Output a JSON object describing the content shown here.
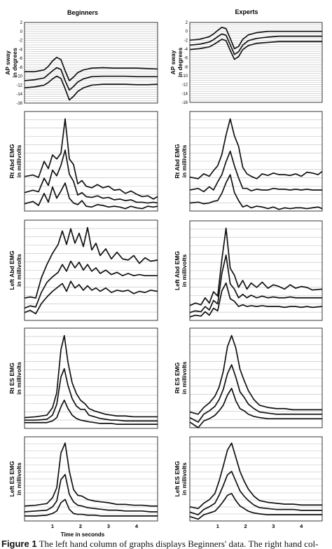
{
  "figure": {
    "columns": [
      "Beginners",
      "Experts"
    ],
    "x_axis_label": "Time in seconds",
    "x_ticks": [
      "1",
      "2",
      "3",
      "4"
    ]
  },
  "caption": {
    "label": "Figure 1",
    "text": "The left hand column of graphs displays Beginners' data. The right hand col-"
  },
  "chart_data": [
    {
      "type": "line",
      "title": "Beginners",
      "ylabel": "AP sway in degrees",
      "x": [
        0,
        0.35,
        0.7,
        0.85,
        1.0,
        1.15,
        1.3,
        1.45,
        1.6,
        1.75,
        1.9,
        2.1,
        2.4,
        2.8,
        3.2,
        3.6,
        4.0,
        4.4,
        4.75
      ],
      "yticks": [
        "2",
        "0",
        "-2",
        "-4",
        "-6",
        "-8",
        "-10",
        "-12",
        "-14",
        "-16"
      ],
      "ylim": [
        -16,
        2
      ],
      "series": [
        {
          "values": [
            -9,
            -9,
            -8.6,
            -7.8,
            -6.6,
            -5.8,
            -6.3,
            -8.8,
            -11,
            -10.2,
            -9.2,
            -8.6,
            -8.2,
            -8.1,
            -8.2,
            -8.2,
            -8.2,
            -8.3,
            -8.4
          ]
        },
        {
          "values": [
            -11,
            -10.8,
            -10.4,
            -9.6,
            -8.8,
            -8.1,
            -8.5,
            -11,
            -13.1,
            -12.3,
            -11.3,
            -10.6,
            -10.1,
            -10,
            -10,
            -10,
            -10.1,
            -10.1,
            -10.1
          ]
        },
        {
          "values": [
            -12.6,
            -12.4,
            -12,
            -11.4,
            -10.6,
            -10,
            -10.5,
            -12.8,
            -15.3,
            -14.5,
            -13.4,
            -12.6,
            -12,
            -11.8,
            -11.8,
            -11.8,
            -11.9,
            -11.9,
            -11.8
          ]
        }
      ]
    },
    {
      "type": "line",
      "title": "Experts",
      "ylabel": "AP sway in degrees",
      "x": [
        0,
        0.35,
        0.7,
        0.85,
        1.0,
        1.15,
        1.3,
        1.45,
        1.6,
        1.75,
        1.9,
        2.1,
        2.4,
        2.8,
        3.2,
        3.6,
        4.0,
        4.4,
        4.75
      ],
      "yticks": [
        "2",
        "0",
        "-2",
        "-4",
        "-6",
        "-8",
        "-10",
        "-12",
        "-14",
        "-16"
      ],
      "ylim": [
        -16,
        2
      ],
      "series": [
        {
          "values": [
            -2,
            -1.8,
            -1.2,
            -0.6,
            0.2,
            0.9,
            0.6,
            -1.6,
            -3.9,
            -3.4,
            -1.8,
            -0.8,
            -0.3,
            0,
            0,
            0,
            0,
            0,
            0
          ]
        },
        {
          "values": [
            -3.1,
            -2.9,
            -2.4,
            -1.9,
            -1.2,
            -0.6,
            -0.9,
            -3,
            -5.2,
            -4.6,
            -3.1,
            -2.1,
            -1.6,
            -1.3,
            -1.1,
            -1.1,
            -1.1,
            -1.1,
            -1.1
          ]
        },
        {
          "values": [
            -4.1,
            -3.9,
            -3.5,
            -3,
            -2.4,
            -1.8,
            -2.1,
            -4.3,
            -6.3,
            -5.7,
            -4.1,
            -3.2,
            -2.7,
            -2.5,
            -2.3,
            -2.3,
            -2.3,
            -2.3,
            -2.3
          ]
        }
      ]
    },
    {
      "type": "line",
      "title": "",
      "ylabel": "Rt Abd EMG in millivolts",
      "x": [
        0,
        0.3,
        0.5,
        0.7,
        0.85,
        1.0,
        1.15,
        1.3,
        1.45,
        1.6,
        1.75,
        1.9,
        2.05,
        2.2,
        2.4,
        2.6,
        2.8,
        3.0,
        3.2,
        3.4,
        3.6,
        3.8,
        4.0,
        4.2,
        4.4,
        4.6,
        4.75
      ],
      "series": [
        {
          "values": [
            4.3,
            4.5,
            4.2,
            6.2,
            5.3,
            7.0,
            6.5,
            7.2,
            11.5,
            6.5,
            5.8,
            3.4,
            3.8,
            3.1,
            2.9,
            3.3,
            2.9,
            3.1,
            2.6,
            2.7,
            2.2,
            2.5,
            2.1,
            1.8,
            1.9,
            1.5,
            1.8
          ]
        },
        {
          "values": [
            2.3,
            2.6,
            2.4,
            4.1,
            3.2,
            5.1,
            4.4,
            5.7,
            7.6,
            4.6,
            3.7,
            2.0,
            2.3,
            1.8,
            1.7,
            1.9,
            1.6,
            1.7,
            1.4,
            1.5,
            1.3,
            1.4,
            1.1,
            1.1,
            1.0,
            1.1,
            1.0
          ]
        },
        {
          "values": [
            0.9,
            1.2,
            0.7,
            2.2,
            1.1,
            3.0,
            1.6,
            2.5,
            3.5,
            1.6,
            1.0,
            0.8,
            1.3,
            0.6,
            0.5,
            0.8,
            0.7,
            0.5,
            0.6,
            0.5,
            0.3,
            0.6,
            0.4,
            0.3,
            0.6,
            0.5,
            0.6
          ]
        }
      ]
    },
    {
      "type": "line",
      "title": "",
      "ylabel": "Rt Abd EMG in millivolts",
      "x": [
        0,
        0.3,
        0.5,
        0.7,
        0.85,
        1.0,
        1.15,
        1.3,
        1.45,
        1.6,
        1.75,
        1.9,
        2.05,
        2.2,
        2.4,
        2.6,
        2.8,
        3.0,
        3.2,
        3.4,
        3.6,
        3.8,
        4.0,
        4.2,
        4.4,
        4.6,
        4.75
      ],
      "series": [
        {
          "values": [
            4.2,
            4.0,
            4.6,
            4.3,
            5.0,
            5.6,
            7.0,
            9.4,
            11.4,
            9.3,
            8.0,
            5.4,
            4.6,
            4.3,
            4.0,
            4.6,
            4.4,
            4.7,
            4.5,
            4.5,
            4.4,
            4.6,
            4.3,
            4.8,
            4.7,
            4.5,
            4.9
          ]
        },
        {
          "values": [
            2.6,
            2.8,
            2.4,
            3.0,
            2.6,
            3.6,
            4.5,
            6.1,
            7.4,
            5.6,
            4.1,
            2.8,
            2.8,
            2.5,
            2.7,
            2.6,
            2.6,
            2.8,
            2.7,
            2.7,
            2.6,
            2.7,
            2.6,
            2.7,
            2.6,
            2.6,
            2.6
          ]
        },
        {
          "values": [
            1.0,
            1.1,
            0.9,
            1.0,
            1.2,
            1.3,
            2.2,
            3.5,
            4.5,
            2.3,
            1.3,
            0.5,
            0.7,
            0.4,
            0.6,
            0.5,
            0.3,
            0.5,
            0.2,
            0.4,
            0.3,
            0.4,
            0.4,
            0.3,
            0.4,
            0.5,
            0.3
          ]
        }
      ]
    },
    {
      "type": "line",
      "title": "",
      "ylabel": "Left Abd EMG in millivolts",
      "x": [
        0,
        0.2,
        0.4,
        0.6,
        0.8,
        1.0,
        1.2,
        1.35,
        1.5,
        1.65,
        1.8,
        1.95,
        2.1,
        2.25,
        2.4,
        2.55,
        2.7,
        2.9,
        3.1,
        3.3,
        3.5,
        3.7,
        3.9,
        4.1,
        4.3,
        4.5,
        4.75
      ],
      "series": [
        {
          "values": [
            2.0,
            2.1,
            2.0,
            3.8,
            5.0,
            6.0,
            6.8,
            8.0,
            6.8,
            8.2,
            6.9,
            7.8,
            6.6,
            8.3,
            6.3,
            6.9,
            5.8,
            6.4,
            5.5,
            6.1,
            5.5,
            5.4,
            5.8,
            5.1,
            5.6,
            5.3,
            5.4
          ]
        },
        {
          "values": [
            1.1,
            1.3,
            1.2,
            2.5,
            3.4,
            3.9,
            4.3,
            5.0,
            4.4,
            5.3,
            4.7,
            5.2,
            4.5,
            5.0,
            4.4,
            4.7,
            4.2,
            4.5,
            4.1,
            4.3,
            4.0,
            4.2,
            4.0,
            4.1,
            4.0,
            4.0,
            4.0
          ]
        },
        {
          "values": [
            0.7,
            0.9,
            0.6,
            1.5,
            2.1,
            2.6,
            3.0,
            3.3,
            2.6,
            3.5,
            2.9,
            3.2,
            2.7,
            3.1,
            2.7,
            2.9,
            2.6,
            2.9,
            2.5,
            2.7,
            2.6,
            2.7,
            2.4,
            2.6,
            2.5,
            2.7,
            2.6
          ]
        }
      ]
    },
    {
      "type": "line",
      "title": "",
      "ylabel": "Left Abd EMG in millivolts",
      "x": [
        0,
        0.2,
        0.4,
        0.55,
        0.7,
        0.85,
        1.0,
        1.15,
        1.3,
        1.45,
        1.6,
        1.75,
        1.9,
        2.05,
        2.2,
        2.4,
        2.6,
        2.8,
        3.0,
        3.2,
        3.4,
        3.6,
        3.8,
        4.0,
        4.2,
        4.4,
        4.75
      ],
      "series": [
        {
          "values": [
            1.7,
            2.0,
            1.8,
            2.6,
            2.0,
            3.3,
            2.8,
            7.0,
            10.6,
            6.0,
            5.2,
            3.8,
            4.6,
            3.6,
            4.3,
            3.8,
            4.4,
            3.7,
            4.1,
            3.9,
            3.6,
            4.1,
            3.7,
            3.9,
            3.8,
            3.5,
            3.6
          ]
        },
        {
          "values": [
            0.9,
            1.1,
            1.0,
            1.6,
            1.2,
            2.3,
            1.9,
            5.4,
            7.5,
            4.2,
            3.6,
            2.6,
            3.0,
            2.6,
            2.9,
            2.6,
            2.8,
            2.6,
            2.7,
            2.6,
            2.6,
            2.7,
            2.6,
            2.6,
            2.6,
            2.6,
            2.6
          ]
        },
        {
          "values": [
            0.4,
            0.6,
            0.5,
            1.0,
            0.6,
            1.4,
            1.1,
            3.4,
            4.3,
            2.5,
            2.2,
            1.6,
            1.8,
            1.6,
            1.7,
            1.6,
            1.7,
            1.6,
            1.6,
            1.6,
            1.5,
            1.6,
            1.6,
            1.5,
            1.6,
            1.5,
            1.6
          ]
        }
      ]
    },
    {
      "type": "line",
      "title": "",
      "ylabel": "Rt ES EMG in millivolts",
      "x": [
        0,
        0.4,
        0.8,
        1.0,
        1.15,
        1.3,
        1.42,
        1.55,
        1.7,
        1.85,
        2.0,
        2.15,
        2.3,
        2.5,
        2.7,
        2.9,
        3.1,
        3.3,
        3.6,
        3.9,
        4.2,
        4.5,
        4.75
      ],
      "series": [
        {
          "values": [
            1.3,
            1.4,
            1.6,
            2.5,
            4.3,
            9.5,
            11.2,
            8.0,
            5.5,
            4.2,
            3.4,
            3.0,
            2.4,
            2.1,
            1.9,
            1.7,
            1.6,
            1.5,
            1.5,
            1.4,
            1.4,
            1.4,
            1.4
          ]
        },
        {
          "values": [
            1.0,
            1.0,
            1.1,
            1.6,
            2.9,
            6.2,
            7.2,
            5.2,
            3.6,
            2.7,
            2.3,
            2.3,
            1.6,
            1.4,
            1.2,
            1.1,
            1.0,
            1.0,
            0.9,
            0.9,
            0.9,
            0.9,
            0.9
          ]
        },
        {
          "values": [
            0.7,
            0.7,
            0.7,
            0.9,
            1.3,
            2.6,
            3.4,
            2.4,
            1.6,
            1.2,
            1.0,
            0.9,
            0.8,
            0.7,
            0.6,
            0.6,
            0.6,
            0.5,
            0.5,
            0.5,
            0.5,
            0.5,
            0.5
          ]
        }
      ]
    },
    {
      "type": "line",
      "title": "",
      "ylabel": "Rt ES EMG in millivolts",
      "x": [
        0,
        0.3,
        0.5,
        0.7,
        0.9,
        1.05,
        1.2,
        1.35,
        1.5,
        1.65,
        1.8,
        1.95,
        2.1,
        2.3,
        2.5,
        2.8,
        3.1,
        3.4,
        3.7,
        4.0,
        4.3,
        4.75
      ],
      "series": [
        {
          "values": [
            1.4,
            1.2,
            1.8,
            2.2,
            2.8,
            3.6,
            5.0,
            7.2,
            8.2,
            7.1,
            5.2,
            4.2,
            3.3,
            2.5,
            2.0,
            1.8,
            1.7,
            1.7,
            1.6,
            1.6,
            1.6,
            1.6
          ]
        },
        {
          "values": [
            0.9,
            0.5,
            1.2,
            1.5,
            1.9,
            2.5,
            3.4,
            4.8,
            5.6,
            4.5,
            3.2,
            2.7,
            2.1,
            1.7,
            1.4,
            1.3,
            1.2,
            1.2,
            1.2,
            1.2,
            1.2,
            1.2
          ]
        },
        {
          "values": [
            0.5,
            0.0,
            0.6,
            0.8,
            1.1,
            1.5,
            2.0,
            2.9,
            3.5,
            2.4,
            1.7,
            1.5,
            1.2,
            1.0,
            0.9,
            0.8,
            0.8,
            0.8,
            0.8,
            0.8,
            0.8,
            0.8
          ]
        }
      ]
    },
    {
      "type": "line",
      "title": "",
      "ylabel": "Left ES EMG in millivolts",
      "x": [
        0,
        0.4,
        0.8,
        1.0,
        1.15,
        1.3,
        1.45,
        1.6,
        1.75,
        1.9,
        2.05,
        2.25,
        2.5,
        2.75,
        3.0,
        3.3,
        3.6,
        3.9,
        4.2,
        4.5,
        4.75
      ],
      "series": [
        {
          "values": [
            1.8,
            1.9,
            2.1,
            2.8,
            4.0,
            8.2,
            9.4,
            6.0,
            3.8,
            3.1,
            3.0,
            2.6,
            2.4,
            2.3,
            2.2,
            2.0,
            2.0,
            1.9,
            1.9,
            1.8,
            1.8
          ]
        },
        {
          "values": [
            1.1,
            1.2,
            1.3,
            1.7,
            2.4,
            5.0,
            5.6,
            3.2,
            2.3,
            1.9,
            1.8,
            1.6,
            1.5,
            1.4,
            1.3,
            1.3,
            1.2,
            1.2,
            1.2,
            1.1,
            1.1
          ]
        },
        {
          "values": [
            0.6,
            0.6,
            0.7,
            0.9,
            1.2,
            2.2,
            2.6,
            1.4,
            0.9,
            0.8,
            0.8,
            0.7,
            0.7,
            0.6,
            0.6,
            0.6,
            0.6,
            0.6,
            0.6,
            0.6,
            0.6
          ]
        }
      ]
    },
    {
      "type": "line",
      "title": "",
      "ylabel": "Left ES EMG in millivolts",
      "x": [
        0,
        0.3,
        0.5,
        0.7,
        0.9,
        1.05,
        1.2,
        1.35,
        1.5,
        1.65,
        1.8,
        1.95,
        2.1,
        2.3,
        2.5,
        2.8,
        3.1,
        3.4,
        3.7,
        4.0,
        4.3,
        4.75
      ],
      "series": [
        {
          "values": [
            1.6,
            1.4,
            2.0,
            2.4,
            3.1,
            4.5,
            6.2,
            8.0,
            8.8,
            7.2,
            5.6,
            4.5,
            3.6,
            2.8,
            2.3,
            2.1,
            2.0,
            1.9,
            1.9,
            1.8,
            1.8,
            1.8
          ]
        },
        {
          "values": [
            1.0,
            0.7,
            1.3,
            1.6,
            2.0,
            2.9,
            4.0,
            5.2,
            5.6,
            4.5,
            3.4,
            2.8,
            2.3,
            1.8,
            1.5,
            1.4,
            1.3,
            1.3,
            1.3,
            1.2,
            1.2,
            1.2
          ]
        },
        {
          "values": [
            0.5,
            0.2,
            0.7,
            0.9,
            1.1,
            1.6,
            2.2,
            2.9,
            3.1,
            2.3,
            1.7,
            1.4,
            1.1,
            0.9,
            0.8,
            0.7,
            0.7,
            0.7,
            0.7,
            0.7,
            0.7,
            0.7
          ]
        }
      ]
    }
  ]
}
